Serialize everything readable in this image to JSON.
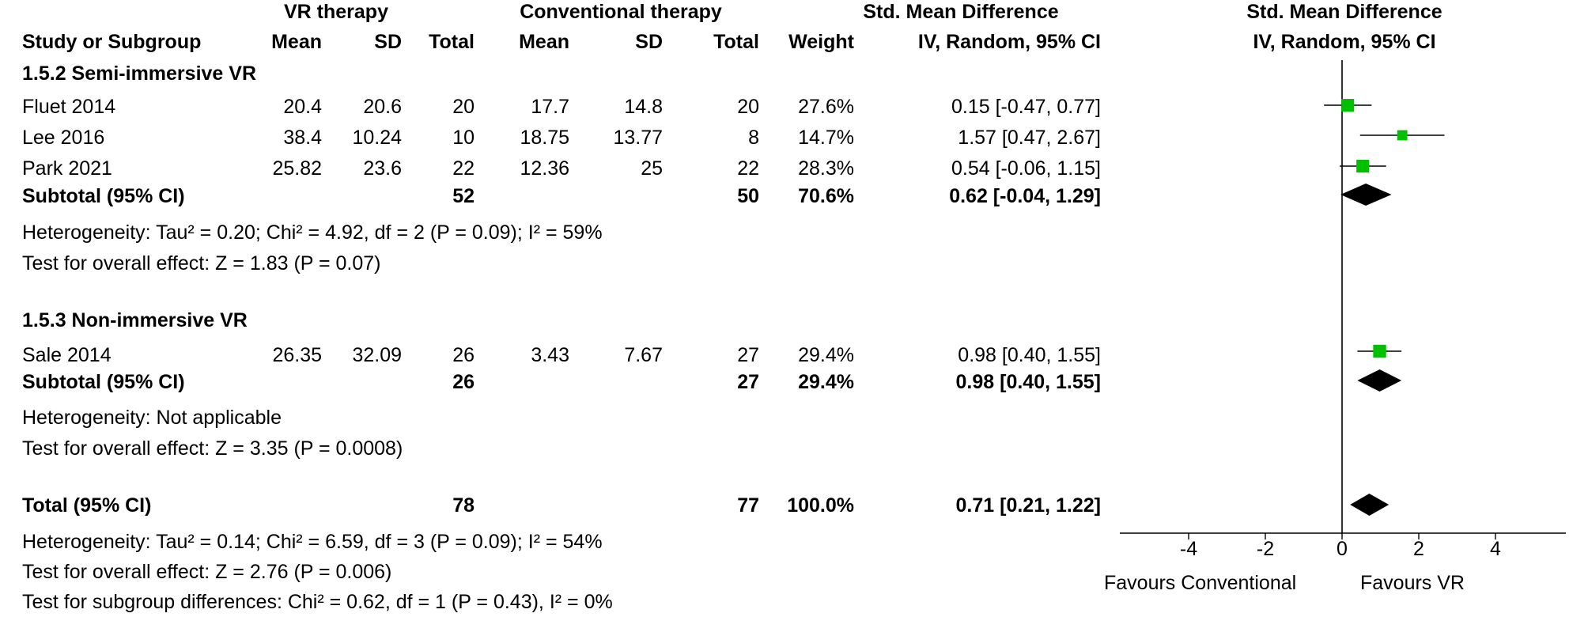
{
  "header": {
    "group1": "VR therapy",
    "group2": "Conventional therapy",
    "smd_header": "Std. Mean Difference",
    "smd_method": "IV, Random, 95% CI",
    "plot_header": "Std. Mean Difference",
    "plot_method": "IV, Random, 95% CI",
    "col_study": "Study or Subgroup",
    "col_mean1": "Mean",
    "col_sd1": "SD",
    "col_total1": "Total",
    "col_mean2": "Mean",
    "col_sd2": "SD",
    "col_total2": "Total",
    "col_weight": "Weight"
  },
  "subgroups": [
    {
      "title": "1.5.2 Semi-immersive VR",
      "studies": [
        {
          "name": "Fluet 2014",
          "mean1": "20.4",
          "sd1": "20.6",
          "n1": "20",
          "mean2": "17.7",
          "sd2": "14.8",
          "n2": "20",
          "weight": "27.6%",
          "ci": "0.15 [-0.47, 0.77]"
        },
        {
          "name": "Lee 2016",
          "mean1": "38.4",
          "sd1": "10.24",
          "n1": "10",
          "mean2": "18.75",
          "sd2": "13.77",
          "n2": "8",
          "weight": "14.7%",
          "ci": "1.57 [0.47, 2.67]"
        },
        {
          "name": "Park 2021",
          "mean1": "25.82",
          "sd1": "23.6",
          "n1": "22",
          "mean2": "12.36",
          "sd2": "25",
          "n2": "22",
          "weight": "28.3%",
          "ci": "0.54 [-0.06, 1.15]"
        }
      ],
      "subtotal": {
        "label": "Subtotal (95% CI)",
        "n1": "52",
        "n2": "50",
        "weight": "70.6%",
        "ci": "0.62 [-0.04, 1.29]"
      },
      "heterogeneity": "Heterogeneity: Tau² = 0.20; Chi² = 4.92, df = 2 (P = 0.09); I² = 59%",
      "overall": "Test for overall effect: Z = 1.83 (P = 0.07)"
    },
    {
      "title": "1.5.3 Non-immersive VR",
      "studies": [
        {
          "name": "Sale 2014",
          "mean1": "26.35",
          "sd1": "32.09",
          "n1": "26",
          "mean2": "3.43",
          "sd2": "7.67",
          "n2": "27",
          "weight": "29.4%",
          "ci": "0.98 [0.40, 1.55]"
        }
      ],
      "subtotal": {
        "label": "Subtotal (95% CI)",
        "n1": "26",
        "n2": "27",
        "weight": "29.4%",
        "ci": "0.98 [0.40, 1.55]"
      },
      "heterogeneity": "Heterogeneity: Not applicable",
      "overall": "Test for overall effect: Z = 3.35 (P = 0.0008)"
    }
  ],
  "total": {
    "label": "Total (95% CI)",
    "n1": "78",
    "n2": "77",
    "weight": "100.0%",
    "ci": "0.71 [0.21, 1.22]",
    "heterogeneity": "Heterogeneity: Tau² = 0.14; Chi² = 6.59, df = 3 (P = 0.09); I² = 54%",
    "overall": "Test for overall effect: Z = 2.76 (P = 0.006)",
    "subgroup_diff": "Test for subgroup differences: Chi² = 0.62, df = 1 (P = 0.43), I² = 0%"
  },
  "chart_data": {
    "type": "forest",
    "xlim": [
      -6,
      6
    ],
    "x_ticks": [
      -4,
      -2,
      0,
      2,
      4
    ],
    "x_tick_labels": [
      "-4",
      "-2",
      "0",
      "2",
      "4"
    ],
    "favours_left": "Favours Conventional",
    "favours_right": "Favours VR",
    "marker_color": "#00c000",
    "diamond_color": "#000000",
    "studies": [
      {
        "name": "Fluet 2014",
        "smd": 0.15,
        "lower": -0.47,
        "upper": 0.77,
        "weight": 27.6
      },
      {
        "name": "Lee 2016",
        "smd": 1.57,
        "lower": 0.47,
        "upper": 2.67,
        "weight": 14.7
      },
      {
        "name": "Park 2021",
        "smd": 0.54,
        "lower": -0.06,
        "upper": 1.15,
        "weight": 28.3
      },
      {
        "name": "Sale 2014",
        "smd": 0.98,
        "lower": 0.4,
        "upper": 1.55,
        "weight": 29.4
      }
    ],
    "pooled": [
      {
        "name": "Subtotal (95% CI)",
        "smd": 0.62,
        "lower": -0.04,
        "upper": 1.29
      },
      {
        "name": "Subtotal (95% CI)",
        "smd": 0.98,
        "lower": 0.4,
        "upper": 1.55
      },
      {
        "name": "Total (95% CI)",
        "smd": 0.71,
        "lower": 0.21,
        "upper": 1.22
      }
    ]
  }
}
